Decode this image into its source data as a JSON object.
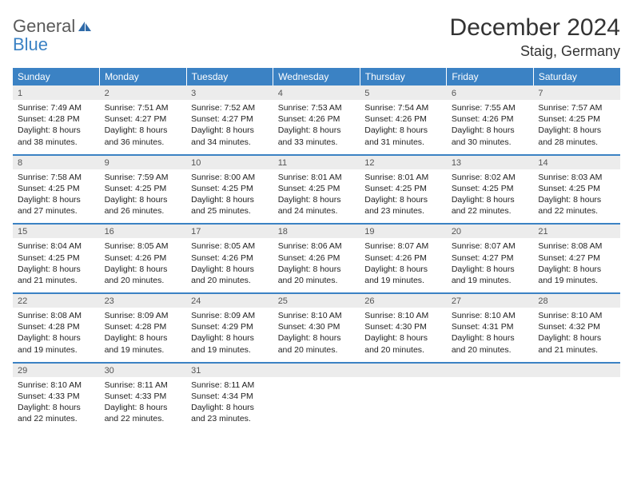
{
  "brand": {
    "part1": "General",
    "part2": "Blue"
  },
  "title": "December 2024",
  "location": "Staig, Germany",
  "colors": {
    "header_bg": "#3b82c4",
    "header_text": "#ffffff",
    "daynum_bg": "#ececec",
    "day_border": "#3b82c4",
    "body_text": "#222222",
    "title_text": "#333333"
  },
  "weekdays": [
    "Sunday",
    "Monday",
    "Tuesday",
    "Wednesday",
    "Thursday",
    "Friday",
    "Saturday"
  ],
  "weeks": [
    [
      {
        "n": "1",
        "sunrise": "7:49 AM",
        "sunset": "4:28 PM",
        "daylight": "8 hours and 38 minutes."
      },
      {
        "n": "2",
        "sunrise": "7:51 AM",
        "sunset": "4:27 PM",
        "daylight": "8 hours and 36 minutes."
      },
      {
        "n": "3",
        "sunrise": "7:52 AM",
        "sunset": "4:27 PM",
        "daylight": "8 hours and 34 minutes."
      },
      {
        "n": "4",
        "sunrise": "7:53 AM",
        "sunset": "4:26 PM",
        "daylight": "8 hours and 33 minutes."
      },
      {
        "n": "5",
        "sunrise": "7:54 AM",
        "sunset": "4:26 PM",
        "daylight": "8 hours and 31 minutes."
      },
      {
        "n": "6",
        "sunrise": "7:55 AM",
        "sunset": "4:26 PM",
        "daylight": "8 hours and 30 minutes."
      },
      {
        "n": "7",
        "sunrise": "7:57 AM",
        "sunset": "4:25 PM",
        "daylight": "8 hours and 28 minutes."
      }
    ],
    [
      {
        "n": "8",
        "sunrise": "7:58 AM",
        "sunset": "4:25 PM",
        "daylight": "8 hours and 27 minutes."
      },
      {
        "n": "9",
        "sunrise": "7:59 AM",
        "sunset": "4:25 PM",
        "daylight": "8 hours and 26 minutes."
      },
      {
        "n": "10",
        "sunrise": "8:00 AM",
        "sunset": "4:25 PM",
        "daylight": "8 hours and 25 minutes."
      },
      {
        "n": "11",
        "sunrise": "8:01 AM",
        "sunset": "4:25 PM",
        "daylight": "8 hours and 24 minutes."
      },
      {
        "n": "12",
        "sunrise": "8:01 AM",
        "sunset": "4:25 PM",
        "daylight": "8 hours and 23 minutes."
      },
      {
        "n": "13",
        "sunrise": "8:02 AM",
        "sunset": "4:25 PM",
        "daylight": "8 hours and 22 minutes."
      },
      {
        "n": "14",
        "sunrise": "8:03 AM",
        "sunset": "4:25 PM",
        "daylight": "8 hours and 22 minutes."
      }
    ],
    [
      {
        "n": "15",
        "sunrise": "8:04 AM",
        "sunset": "4:25 PM",
        "daylight": "8 hours and 21 minutes."
      },
      {
        "n": "16",
        "sunrise": "8:05 AM",
        "sunset": "4:26 PM",
        "daylight": "8 hours and 20 minutes."
      },
      {
        "n": "17",
        "sunrise": "8:05 AM",
        "sunset": "4:26 PM",
        "daylight": "8 hours and 20 minutes."
      },
      {
        "n": "18",
        "sunrise": "8:06 AM",
        "sunset": "4:26 PM",
        "daylight": "8 hours and 20 minutes."
      },
      {
        "n": "19",
        "sunrise": "8:07 AM",
        "sunset": "4:26 PM",
        "daylight": "8 hours and 19 minutes."
      },
      {
        "n": "20",
        "sunrise": "8:07 AM",
        "sunset": "4:27 PM",
        "daylight": "8 hours and 19 minutes."
      },
      {
        "n": "21",
        "sunrise": "8:08 AM",
        "sunset": "4:27 PM",
        "daylight": "8 hours and 19 minutes."
      }
    ],
    [
      {
        "n": "22",
        "sunrise": "8:08 AM",
        "sunset": "4:28 PM",
        "daylight": "8 hours and 19 minutes."
      },
      {
        "n": "23",
        "sunrise": "8:09 AM",
        "sunset": "4:28 PM",
        "daylight": "8 hours and 19 minutes."
      },
      {
        "n": "24",
        "sunrise": "8:09 AM",
        "sunset": "4:29 PM",
        "daylight": "8 hours and 19 minutes."
      },
      {
        "n": "25",
        "sunrise": "8:10 AM",
        "sunset": "4:30 PM",
        "daylight": "8 hours and 20 minutes."
      },
      {
        "n": "26",
        "sunrise": "8:10 AM",
        "sunset": "4:30 PM",
        "daylight": "8 hours and 20 minutes."
      },
      {
        "n": "27",
        "sunrise": "8:10 AM",
        "sunset": "4:31 PM",
        "daylight": "8 hours and 20 minutes."
      },
      {
        "n": "28",
        "sunrise": "8:10 AM",
        "sunset": "4:32 PM",
        "daylight": "8 hours and 21 minutes."
      }
    ],
    [
      {
        "n": "29",
        "sunrise": "8:10 AM",
        "sunset": "4:33 PM",
        "daylight": "8 hours and 22 minutes."
      },
      {
        "n": "30",
        "sunrise": "8:11 AM",
        "sunset": "4:33 PM",
        "daylight": "8 hours and 22 minutes."
      },
      {
        "n": "31",
        "sunrise": "8:11 AM",
        "sunset": "4:34 PM",
        "daylight": "8 hours and 23 minutes."
      },
      null,
      null,
      null,
      null
    ]
  ],
  "labels": {
    "sunrise": "Sunrise:",
    "sunset": "Sunset:",
    "daylight": "Daylight:"
  }
}
